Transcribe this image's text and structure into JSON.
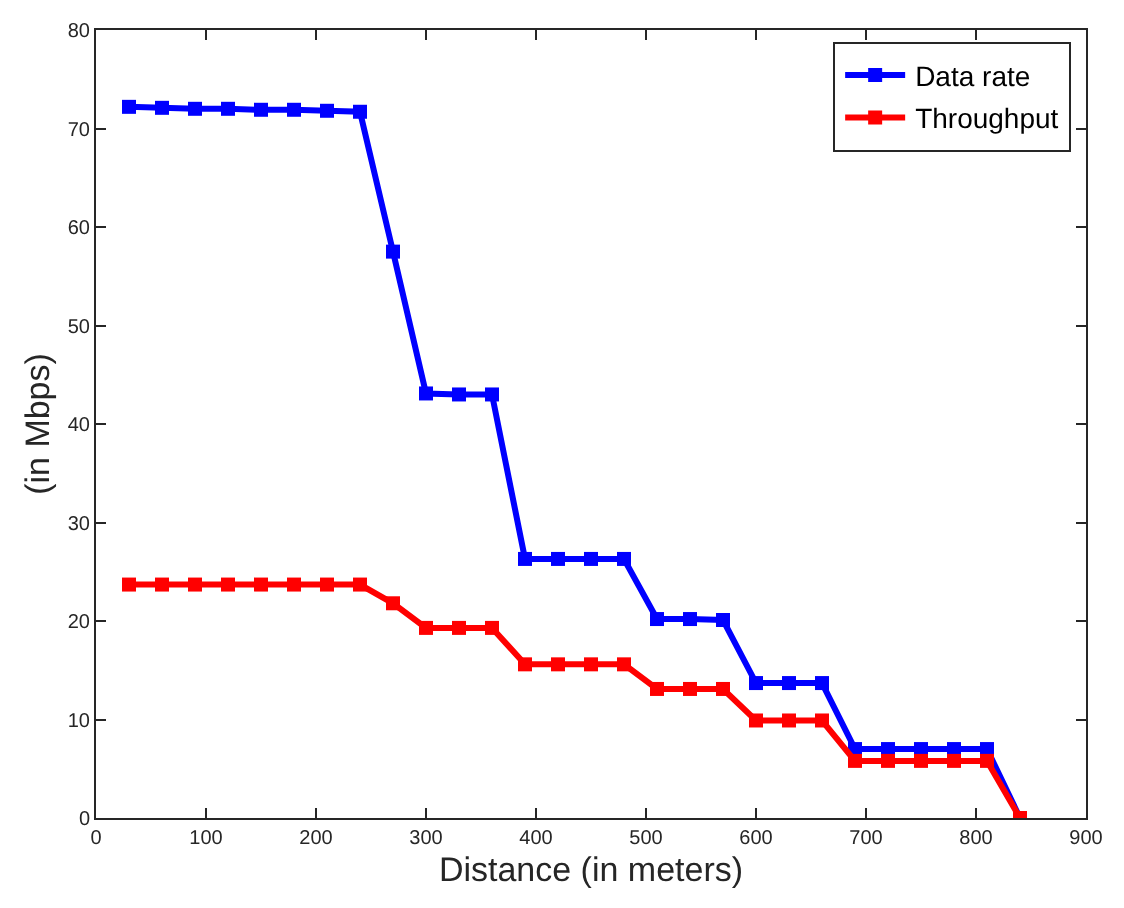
{
  "chart_data": {
    "type": "line",
    "xlabel": "Distance (in meters)",
    "ylabel": "(in Mbps)",
    "x": [
      30,
      60,
      90,
      120,
      150,
      180,
      210,
      240,
      270,
      300,
      330,
      360,
      390,
      420,
      450,
      480,
      510,
      540,
      570,
      600,
      630,
      660,
      690,
      720,
      750,
      780,
      810,
      840
    ],
    "series": [
      {
        "name": "Data rate",
        "color": "#0000ff",
        "values": [
          72.2,
          72.1,
          72.0,
          72.0,
          71.9,
          71.9,
          71.8,
          71.7,
          57.5,
          43.1,
          43.0,
          43.0,
          26.3,
          26.3,
          26.3,
          26.3,
          20.2,
          20.2,
          20.1,
          13.7,
          13.7,
          13.7,
          7.0,
          7.0,
          7.0,
          7.0,
          7.0,
          0
        ]
      },
      {
        "name": "Throughput",
        "color": "#ff0000",
        "values": [
          23.7,
          23.7,
          23.7,
          23.7,
          23.7,
          23.7,
          23.7,
          23.7,
          21.8,
          19.3,
          19.3,
          19.3,
          15.6,
          15.6,
          15.6,
          15.6,
          13.1,
          13.1,
          13.1,
          9.9,
          9.9,
          9.9,
          5.8,
          5.8,
          5.8,
          5.8,
          5.8,
          0
        ]
      }
    ],
    "xlim": [
      0,
      900
    ],
    "xticks": [
      0,
      100,
      200,
      300,
      400,
      500,
      600,
      700,
      800,
      900
    ],
    "ylim": [
      0,
      80
    ],
    "yticks": [
      0,
      10,
      20,
      30,
      40,
      50,
      60,
      70,
      80
    ],
    "legend": "top right",
    "marker": "square",
    "line_style": "solid"
  }
}
